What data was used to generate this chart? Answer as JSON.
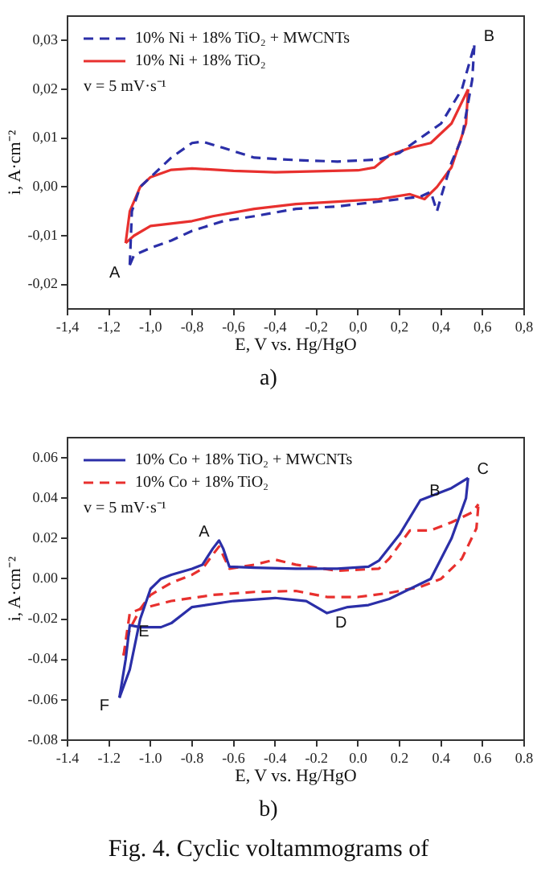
{
  "chart_data": [
    {
      "type": "line",
      "xlabel": "E, V vs. Hg/HgO",
      "ylabel": "i, A·cm⁻²",
      "legend": "top left",
      "grid": false,
      "marker": "none",
      "xlim": [
        -1.4,
        0.8
      ],
      "ylim": [
        -0.025,
        0.035
      ],
      "xticks": [
        {
          "value": -1.4,
          "label": "-1,4"
        },
        {
          "value": -1.2,
          "label": "-1,2"
        },
        {
          "value": -1.0,
          "label": "-1,0"
        },
        {
          "value": -0.8,
          "label": "-0,8"
        },
        {
          "value": -0.6,
          "label": "-0,6"
        },
        {
          "value": -0.4,
          "label": "-0,4"
        },
        {
          "value": -0.2,
          "label": "-0,2"
        },
        {
          "value": 0,
          "label": "0,0"
        },
        {
          "value": 0.2,
          "label": "0,2"
        },
        {
          "value": 0.4,
          "label": "0,4"
        },
        {
          "value": 0.6,
          "label": "0,6"
        },
        {
          "value": 0.8,
          "label": "0,8"
        }
      ],
      "yticks": [
        {
          "value": -0.02,
          "label": "-0,02"
        },
        {
          "value": -0.01,
          "label": "-0,01"
        },
        {
          "value": 0,
          "label": "0,00"
        },
        {
          "value": 0.01,
          "label": "0,01"
        },
        {
          "value": 0.02,
          "label": "0,02"
        },
        {
          "value": 0.03,
          "label": "0,03"
        }
      ],
      "series": [
        {
          "name": "10% Ni + 18% TiO₂ + MWCNTs",
          "color": "#2b2fa8",
          "line_style": "dashed",
          "x": [
            -1.1,
            -1.09,
            -1.05,
            -1.0,
            -0.9,
            -0.8,
            -0.75,
            -0.65,
            -0.5,
            -0.3,
            -0.1,
            0.1,
            0.2,
            0.3,
            0.4,
            0.5,
            0.56
          ],
          "values": [
            -0.016,
            -0.005,
            0.0,
            0.002,
            0.006,
            0.009,
            0.0093,
            0.008,
            0.006,
            0.0055,
            0.0052,
            0.0056,
            0.007,
            0.01,
            0.013,
            0.02,
            0.029
          ]
        },
        {
          "color": "#2b2fa8",
          "line_style": "dashed",
          "x": [
            -1.1,
            -1.08,
            -1.0,
            -0.9,
            -0.8,
            -0.65,
            -0.5,
            -0.3,
            -0.1,
            0.1,
            0.3,
            0.35,
            0.38,
            0.4,
            0.45,
            0.5,
            0.55,
            0.56
          ],
          "values": [
            -0.016,
            -0.014,
            -0.0125,
            -0.011,
            -0.009,
            -0.007,
            -0.006,
            -0.0045,
            -0.004,
            -0.003,
            -0.002,
            -0.001,
            -0.005,
            -0.002,
            0.005,
            0.01,
            0.022,
            0.029
          ]
        },
        {
          "name": "10% Ni + 18% TiO₂",
          "color": "#e8302e",
          "line_style": "solid",
          "x": [
            -1.12,
            -1.1,
            -1.05,
            -1.0,
            -0.9,
            -0.8,
            -0.6,
            -0.4,
            -0.2,
            0.0,
            0.08,
            0.15,
            0.25,
            0.35,
            0.45,
            0.53
          ],
          "values": [
            -0.0115,
            -0.005,
            0.0,
            0.002,
            0.0035,
            0.0038,
            0.0033,
            0.003,
            0.0032,
            0.0034,
            0.004,
            0.0065,
            0.008,
            0.009,
            0.013,
            0.02
          ]
        },
        {
          "color": "#e8302e",
          "line_style": "solid",
          "x": [
            -1.12,
            -1.08,
            -1.0,
            -0.9,
            -0.8,
            -0.7,
            -0.5,
            -0.3,
            -0.1,
            0.1,
            0.25,
            0.32,
            0.38,
            0.45,
            0.52,
            0.53
          ],
          "values": [
            -0.0115,
            -0.01,
            -0.008,
            -0.0075,
            -0.007,
            -0.006,
            -0.0045,
            -0.0035,
            -0.003,
            -0.0025,
            -0.0015,
            -0.0025,
            0.0,
            0.004,
            0.013,
            0.02
          ]
        }
      ],
      "annotations": [
        "v = 5 mV·s⁻¹",
        {
          "text": "A",
          "x": -1.1,
          "y": -0.016
        },
        {
          "text": "B",
          "x": 0.56,
          "y": 0.029
        },
        "a)"
      ]
    },
    {
      "type": "line",
      "xlabel": "E, V vs. Hg/HgO",
      "ylabel": "i, A·cm⁻²",
      "legend": "top left",
      "grid": false,
      "marker": "none",
      "xlim": [
        -1.4,
        0.8
      ],
      "ylim": [
        -0.08,
        0.07
      ],
      "xticks": [
        {
          "value": -1.4,
          "label": "-1.4"
        },
        {
          "value": -1.2,
          "label": "-1.2"
        },
        {
          "value": -1.0,
          "label": "-1.0"
        },
        {
          "value": -0.8,
          "label": "-0.8"
        },
        {
          "value": -0.6,
          "label": "-0.6"
        },
        {
          "value": -0.4,
          "label": "-0.4"
        },
        {
          "value": -0.2,
          "label": "-0.2"
        },
        {
          "value": 0,
          "label": "0.0"
        },
        {
          "value": 0.2,
          "label": "0.2"
        },
        {
          "value": 0.4,
          "label": "0.4"
        },
        {
          "value": 0.6,
          "label": "0.6"
        },
        {
          "value": 0.8,
          "label": "0.8"
        }
      ],
      "yticks": [
        {
          "value": -0.08,
          "label": "-0.08"
        },
        {
          "value": -0.06,
          "label": "-0.06"
        },
        {
          "value": -0.04,
          "label": "-0.04"
        },
        {
          "value": -0.02,
          "label": "-0.02"
        },
        {
          "value": 0,
          "label": "0.00"
        },
        {
          "value": 0.02,
          "label": "0.02"
        },
        {
          "value": 0.04,
          "label": "0.04"
        },
        {
          "value": 0.06,
          "label": "0.06"
        }
      ],
      "series": [
        {
          "name": "10% Co + 18% TiO₂ + MWCNTs",
          "color": "#2b2fa8",
          "line_style": "solid",
          "x": [
            -1.15,
            -1.1,
            -1.05,
            -1.0,
            -0.95,
            -0.9,
            -0.8,
            -0.75,
            -0.7,
            -0.67,
            -0.65,
            -0.62,
            -0.5,
            -0.3,
            -0.1,
            0.05,
            0.1,
            0.2,
            0.3,
            0.4,
            0.45,
            0.53
          ],
          "values": [
            -0.059,
            -0.045,
            -0.02,
            -0.005,
            0.0,
            0.002,
            0.005,
            0.007,
            0.015,
            0.019,
            0.015,
            0.006,
            0.0055,
            0.005,
            0.005,
            0.006,
            0.009,
            0.022,
            0.039,
            0.043,
            0.045,
            0.05
          ]
        },
        {
          "color": "#2b2fa8",
          "line_style": "solid",
          "x": [
            -1.15,
            -1.12,
            -1.1,
            -1.05,
            -0.95,
            -0.9,
            -0.8,
            -0.6,
            -0.4,
            -0.25,
            -0.15,
            -0.05,
            0.05,
            0.15,
            0.25,
            0.35,
            0.45,
            0.52,
            0.53
          ],
          "values": [
            -0.059,
            -0.04,
            -0.023,
            -0.024,
            -0.024,
            -0.022,
            -0.014,
            -0.011,
            -0.0095,
            -0.011,
            -0.017,
            -0.014,
            -0.013,
            -0.01,
            -0.005,
            0.0,
            0.02,
            0.04,
            0.05
          ]
        },
        {
          "name": "10% Co + 18% TiO₂",
          "color": "#e8302e",
          "line_style": "dashed",
          "x": [
            -1.13,
            -1.1,
            -1.05,
            -1.0,
            -0.9,
            -0.8,
            -0.75,
            -0.7,
            -0.67,
            -0.62,
            -0.5,
            -0.4,
            -0.3,
            -0.1,
            0.1,
            0.15,
            0.25,
            0.35,
            0.45,
            0.55,
            0.58
          ],
          "values": [
            -0.038,
            -0.025,
            -0.015,
            -0.008,
            -0.002,
            0.002,
            0.005,
            0.012,
            0.016,
            0.005,
            0.007,
            0.0095,
            0.007,
            0.004,
            0.005,
            0.01,
            0.024,
            0.024,
            0.028,
            0.033,
            0.037
          ]
        },
        {
          "color": "#e8302e",
          "line_style": "dashed",
          "x": [
            -1.13,
            -1.1,
            -1.05,
            -0.9,
            -0.7,
            -0.5,
            -0.3,
            -0.15,
            0.0,
            0.15,
            0.3,
            0.4,
            0.5,
            0.57,
            0.58
          ],
          "values": [
            -0.038,
            -0.017,
            -0.015,
            -0.011,
            -0.008,
            -0.0065,
            -0.006,
            -0.009,
            -0.009,
            -0.007,
            -0.004,
            0.0,
            0.01,
            0.025,
            0.037
          ]
        }
      ],
      "annotations": [
        "v = 5 mV·s⁻¹",
        {
          "text": "A",
          "x": -0.67,
          "y": 0.019
        },
        {
          "text": "B",
          "x": 0.3,
          "y": 0.039
        },
        {
          "text": "C",
          "x": 0.53,
          "y": 0.05
        },
        {
          "text": "D",
          "x": -0.15,
          "y": -0.017
        },
        {
          "text": "E",
          "x": -0.95,
          "y": -0.024
        },
        {
          "text": "F",
          "x": -1.15,
          "y": -0.059
        },
        "b)",
        "Fig. 4. Cyclic voltammograms of"
      ]
    }
  ]
}
